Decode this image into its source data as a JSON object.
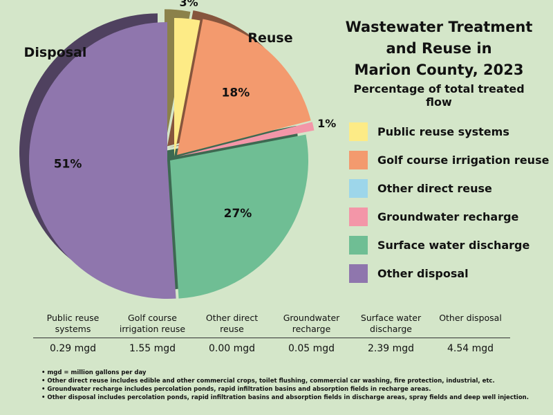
{
  "title": "Wastewater Treatment\nand Reuse in\nMarion County, 2023",
  "subtitle": "Percentage of total treated flow",
  "group_labels": {
    "reuse": "Reuse",
    "disposal": "Disposal"
  },
  "chart_data": {
    "type": "pie",
    "title": "Wastewater Treatment and Reuse in Marion County, 2023",
    "subtitle": "Percentage of total treated flow",
    "categories": [
      "Public reuse systems",
      "Golf course irrigation reuse",
      "Other direct reuse",
      "Groundwater recharge",
      "Surface water discharge",
      "Other disposal"
    ],
    "values": [
      3,
      18,
      0,
      1,
      27,
      51
    ],
    "value_labels": [
      "3%",
      "18%",
      "",
      "1%",
      "27%",
      "51%"
    ],
    "colors": [
      "#fdeb86",
      "#f39a6e",
      "#9dd6ea",
      "#f396a8",
      "#6fbe94",
      "#8f76ad"
    ],
    "legend_position": "right"
  },
  "legend": [
    {
      "label": "Public reuse systems",
      "color": "#fdeb86"
    },
    {
      "label": "Golf course irrigation reuse",
      "color": "#f39a6e"
    },
    {
      "label": "Other direct reuse",
      "color": "#9dd6ea"
    },
    {
      "label": "Groundwater recharge",
      "color": "#f396a8"
    },
    {
      "label": "Surface water discharge",
      "color": "#6fbe94"
    },
    {
      "label": "Other disposal",
      "color": "#8f76ad"
    }
  ],
  "table": {
    "headers": [
      "Public reuse\nsystems",
      "Golf course\nirrigation reuse",
      "Other direct\nreuse",
      "Groundwater\nrecharge",
      "Surface water\ndischarge",
      "Other disposal"
    ],
    "values": [
      "0.29 mgd",
      "1.55  mgd",
      "0.00 mgd",
      "0.05 mgd",
      "2.39 mgd",
      "4.54 mgd"
    ]
  },
  "notes": [
    "• mgd = million gallons per day",
    "• Other direct reuse includes edible and other commercial crops, toilet flushing, commercial car washing, fire protection, industrial, etc.",
    "• Groundwater recharge includes percolation ponds, rapid infiltration basins and absorption fields in recharge areas.",
    "• Other disposal includes percolation ponds, rapid infiltration basins and absorption fields in discharge areas, spray fields and deep well injection."
  ]
}
